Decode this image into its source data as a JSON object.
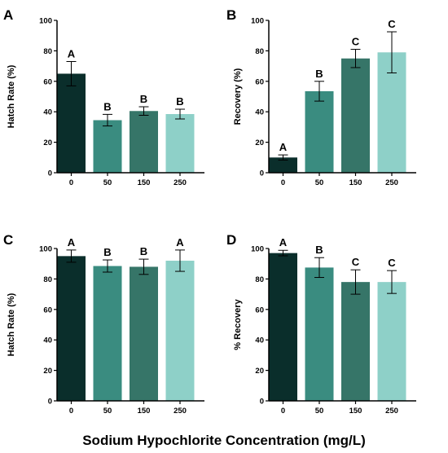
{
  "figure": {
    "xlabel": "Sodium Hypochlorite Concentration (mg/L)"
  },
  "colors": [
    "#0a2e2b",
    "#3a8c80",
    "#367568",
    "#8ed0c8"
  ],
  "chart_data": [
    {
      "panel": "A",
      "type": "bar",
      "categories": [
        "0",
        "50",
        "150",
        "250"
      ],
      "values": [
        65,
        34.5,
        40.5,
        38.5
      ],
      "error": [
        8,
        3.8,
        2.8,
        3.2
      ],
      "significance": [
        "A",
        "B",
        "B",
        "B"
      ],
      "ylabel": "Hatch Rate (%)",
      "ylim": [
        0,
        100
      ],
      "yticks": [
        0,
        20,
        40,
        60,
        80,
        100
      ]
    },
    {
      "panel": "B",
      "type": "bar",
      "categories": [
        "0",
        "50",
        "150",
        "250"
      ],
      "values": [
        10,
        53.5,
        75,
        79
      ],
      "error": [
        1.7,
        6.5,
        6,
        13.5
      ],
      "significance": [
        "A",
        "B",
        "C",
        "C"
      ],
      "ylabel": "Recovery (%)",
      "ylim": [
        0,
        100
      ],
      "yticks": [
        0,
        20,
        40,
        60,
        80,
        100
      ]
    },
    {
      "panel": "C",
      "type": "bar",
      "categories": [
        "0",
        "50",
        "150",
        "250"
      ],
      "values": [
        95,
        88.5,
        88,
        92
      ],
      "error": [
        4,
        4,
        5,
        7
      ],
      "significance": [
        "A",
        "B",
        "B",
        "A"
      ],
      "ylabel": "Hatch Rate (%)",
      "ylim": [
        0,
        100
      ],
      "yticks": [
        0,
        20,
        40,
        60,
        80,
        100
      ]
    },
    {
      "panel": "D",
      "type": "bar",
      "categories": [
        "0",
        "50",
        "150",
        "250"
      ],
      "values": [
        97,
        87.5,
        78,
        78
      ],
      "error": [
        1.8,
        6.5,
        8,
        7.5
      ],
      "significance": [
        "A",
        "B",
        "C",
        "C"
      ],
      "ylabel": "% Recovery",
      "ylim": [
        0,
        100
      ],
      "yticks": [
        0,
        20,
        40,
        60,
        80,
        100
      ]
    }
  ]
}
